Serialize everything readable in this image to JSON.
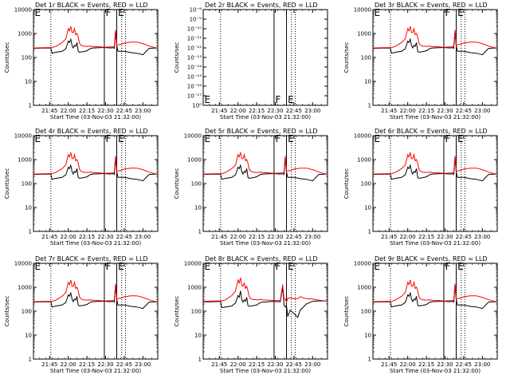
{
  "chart_data": [
    {
      "type": "line",
      "title": "Det 1r BLACK = Events, RED = LLD",
      "xlabel": "Start Time (03-Nov-03 21:32:00)",
      "ylabel": "Counts/sec",
      "yscale": "log",
      "ylim": [
        1,
        10000
      ],
      "yticks": [
        "10000",
        "1000",
        "100",
        "10",
        "1"
      ],
      "xlim": [
        "21:32",
        "23:12"
      ],
      "xticks": [
        "21:45",
        "22:00",
        "22:15",
        "22:30",
        "22:45",
        "23:00"
      ],
      "dotted_lines": [
        "21:46",
        "22:43",
        "22:46"
      ],
      "solid_lines": [
        "22:29",
        "22:39"
      ],
      "flags": [
        "E",
        "F",
        "E"
      ],
      "has_data": true,
      "variant": "A",
      "series": [
        {
          "name": "Events",
          "color": "#000000",
          "values": []
        },
        {
          "name": "LLD",
          "color": "#ff0000",
          "values": []
        }
      ]
    },
    {
      "type": "line",
      "title": "Det 2r BLACK = Events, RED = LLD",
      "xlabel": "Start Time (03-Nov-03 21:32:00)",
      "ylabel": "Counts/sec",
      "yscale": "log",
      "ylim": [
        1,
        1e-08
      ],
      "yticks": [
        "10⁻⁸",
        "10⁻⁹",
        "10⁻¹⁰",
        "10⁻¹¹",
        "10⁻¹²",
        "10⁻¹³",
        "10⁻¹⁴",
        "10⁻¹⁵",
        "10⁻¹⁶",
        "10⁻¹⁷",
        "10⁰"
      ],
      "xlim": [
        "21:32",
        "23:12"
      ],
      "xticks": [
        "21:45",
        "22:00",
        "22:15",
        "22:30",
        "22:45",
        "23:00"
      ],
      "dotted_lines": [
        "21:46",
        "22:43",
        "22:46"
      ],
      "solid_lines": [
        "22:29",
        "22:39"
      ],
      "flags": [
        "E",
        "F",
        "E"
      ],
      "has_data": false,
      "variant": "A",
      "series": []
    },
    {
      "type": "line",
      "title": "Det 3r BLACK = Events, RED = LLD",
      "xlabel": "Start Time (03-Nov-03 21:32:00)",
      "ylabel": "Counts/sec",
      "yscale": "log",
      "ylim": [
        1,
        10000
      ],
      "yticks": [
        "10000",
        "1000",
        "100",
        "10",
        "1"
      ],
      "xlim": [
        "21:32",
        "23:12"
      ],
      "xticks": [
        "21:45",
        "22:00",
        "22:15",
        "22:30",
        "22:45",
        "23:00"
      ],
      "dotted_lines": [
        "21:46",
        "22:43",
        "22:46"
      ],
      "solid_lines": [
        "22:29",
        "22:39"
      ],
      "flags": [
        "E",
        "F",
        "E"
      ],
      "has_data": true,
      "variant": "A",
      "series": [
        {
          "name": "Events",
          "color": "#000000",
          "values": []
        },
        {
          "name": "LLD",
          "color": "#ff0000",
          "values": []
        }
      ]
    },
    {
      "type": "line",
      "title": "Det 4r BLACK = Events, RED = LLD",
      "xlabel": "Start Time (03-Nov-03 21:32:00)",
      "ylabel": "Counts/sec",
      "yscale": "log",
      "ylim": [
        1,
        10000
      ],
      "yticks": [
        "10000",
        "1000",
        "100",
        "10",
        "1"
      ],
      "xlim": [
        "21:32",
        "23:12"
      ],
      "xticks": [
        "21:45",
        "22:00",
        "22:15",
        "22:30",
        "22:45",
        "23:00"
      ],
      "dotted_lines": [
        "21:46",
        "22:43",
        "22:46"
      ],
      "solid_lines": [
        "22:29",
        "22:39"
      ],
      "flags": [
        "E",
        "F",
        "E"
      ],
      "has_data": true,
      "variant": "A",
      "series": [
        {
          "name": "Events",
          "color": "#000000",
          "values": []
        },
        {
          "name": "LLD",
          "color": "#ff0000",
          "values": []
        }
      ]
    },
    {
      "type": "line",
      "title": "Det 5r BLACK = Events, RED = LLD",
      "xlabel": "Start Time (03-Nov-03 21:32:00)",
      "ylabel": "Counts/sec",
      "yscale": "log",
      "ylim": [
        1,
        10000
      ],
      "yticks": [
        "10000",
        "1000",
        "100",
        "10",
        "1"
      ],
      "xlim": [
        "21:32",
        "23:12"
      ],
      "xticks": [
        "21:45",
        "22:00",
        "22:15",
        "22:30",
        "22:45",
        "23:00"
      ],
      "dotted_lines": [
        "21:46",
        "22:43",
        "22:46"
      ],
      "solid_lines": [
        "22:29",
        "22:39"
      ],
      "flags": [
        "E",
        "F",
        "E"
      ],
      "has_data": true,
      "variant": "A",
      "series": [
        {
          "name": "Events",
          "color": "#000000",
          "values": []
        },
        {
          "name": "LLD",
          "color": "#ff0000",
          "values": []
        }
      ]
    },
    {
      "type": "line",
      "title": "Det 6r BLACK = Events, RED = LLD",
      "xlabel": "Start Time (03-Nov-03 21:32:00)",
      "ylabel": "Counts/sec",
      "yscale": "log",
      "ylim": [
        1,
        10000
      ],
      "yticks": [
        "10000",
        "1000",
        "100",
        "10",
        "1"
      ],
      "xlim": [
        "21:32",
        "23:12"
      ],
      "xticks": [
        "21:45",
        "22:00",
        "22:15",
        "22:30",
        "22:45",
        "23:00"
      ],
      "dotted_lines": [
        "21:46",
        "22:43",
        "22:46"
      ],
      "solid_lines": [
        "22:29",
        "22:39"
      ],
      "flags": [
        "E",
        "F",
        "E"
      ],
      "has_data": true,
      "variant": "A",
      "series": [
        {
          "name": "Events",
          "color": "#000000",
          "values": []
        },
        {
          "name": "LLD",
          "color": "#ff0000",
          "values": []
        }
      ]
    },
    {
      "type": "line",
      "title": "Det 7r BLACK = Events, RED = LLD",
      "xlabel": "Start Time (03-Nov-03 21:32:00)",
      "ylabel": "Counts/sec",
      "yscale": "log",
      "ylim": [
        1,
        10000
      ],
      "yticks": [
        "10000",
        "1000",
        "100",
        "10",
        "1"
      ],
      "xlim": [
        "21:32",
        "23:12"
      ],
      "xticks": [
        "21:45",
        "22:00",
        "22:15",
        "22:30",
        "22:45",
        "23:00"
      ],
      "dotted_lines": [
        "21:46",
        "22:43",
        "22:46"
      ],
      "solid_lines": [
        "22:29",
        "22:39"
      ],
      "flags": [
        "E",
        "F",
        "E"
      ],
      "has_data": true,
      "variant": "A",
      "series": [
        {
          "name": "Events",
          "color": "#000000",
          "values": []
        },
        {
          "name": "LLD",
          "color": "#ff0000",
          "values": []
        }
      ]
    },
    {
      "type": "line",
      "title": "Det 8r BLACK = Events, RED = LLD",
      "xlabel": "Start Time (03-Nov-03 21:32:00)",
      "ylabel": "Counts/sec",
      "yscale": "log",
      "ylim": [
        1,
        10000
      ],
      "yticks": [
        "10000",
        "1000",
        "100",
        "10",
        "1"
      ],
      "xlim": [
        "21:32",
        "23:12"
      ],
      "xticks": [
        "21:45",
        "22:00",
        "22:15",
        "22:30",
        "22:45",
        "23:00"
      ],
      "dotted_lines": [
        "21:46",
        "22:43",
        "22:46"
      ],
      "solid_lines": [
        "22:29",
        "22:39"
      ],
      "flags": [
        "E",
        "F",
        "E"
      ],
      "has_data": true,
      "variant": "B",
      "series": [
        {
          "name": "Events",
          "color": "#000000",
          "values": []
        },
        {
          "name": "LLD",
          "color": "#ff0000",
          "values": []
        }
      ]
    },
    {
      "type": "line",
      "title": "Det 9r BLACK = Events, RED = LLD",
      "xlabel": "Start Time (03-Nov-03 21:32:00)",
      "ylabel": "Counts/sec",
      "yscale": "log",
      "ylim": [
        1,
        10000
      ],
      "yticks": [
        "10000",
        "1000",
        "100",
        "10",
        "1"
      ],
      "xlim": [
        "21:32",
        "23:12"
      ],
      "xticks": [
        "21:45",
        "22:00",
        "22:15",
        "22:30",
        "22:45",
        "23:00"
      ],
      "dotted_lines": [
        "21:46",
        "22:43",
        "22:46"
      ],
      "solid_lines": [
        "22:29",
        "22:39"
      ],
      "flags": [
        "E",
        "F",
        "E"
      ],
      "has_data": true,
      "variant": "A",
      "series": [
        {
          "name": "Events",
          "color": "#000000",
          "values": []
        },
        {
          "name": "LLD",
          "color": "#ff0000",
          "values": []
        }
      ]
    }
  ],
  "profiles": {
    "times": [
      "21:32",
      "21:40",
      "21:46",
      "21:47",
      "21:50",
      "21:55",
      "21:58",
      "22:00",
      "22:01",
      "22:02",
      "22:03",
      "22:04",
      "22:05",
      "22:06",
      "22:07",
      "22:08",
      "22:09",
      "22:10",
      "22:12",
      "22:15",
      "22:18",
      "22:20",
      "22:25",
      "22:28",
      "22:29",
      "22:31",
      "22:34",
      "22:36",
      "22:37",
      "22:38",
      "22:39",
      "22:40",
      "22:42",
      "22:45",
      "22:48",
      "22:50",
      "22:55",
      "23:00",
      "23:05",
      "23:10",
      "23:12"
    ],
    "A": {
      "Events": [
        240,
        245,
        250,
        150,
        165,
        180,
        230,
        480,
        420,
        580,
        320,
        250,
        320,
        290,
        420,
        180,
        165,
        170,
        175,
        190,
        240,
        250,
        255,
        260,
        260,
        255,
        250,
        260,
        240,
        1200,
        300,
        180,
        180,
        180,
        170,
        160,
        150,
        130,
        240,
        250,
        245
      ],
      "LLD": [
        250,
        255,
        260,
        260,
        290,
        420,
        600,
        1600,
        1300,
        2000,
        1100,
        1100,
        1600,
        900,
        1000,
        700,
        400,
        330,
        300,
        290,
        300,
        285,
        280,
        270,
        270,
        270,
        275,
        280,
        290,
        1400,
        330,
        340,
        350,
        400,
        420,
        440,
        440,
        380,
        300,
        255,
        250
      ]
    },
    "B": {
      "Events": [
        245,
        250,
        255,
        140,
        150,
        165,
        220,
        450,
        380,
        700,
        300,
        240,
        300,
        260,
        380,
        170,
        160,
        165,
        170,
        180,
        230,
        240,
        250,
        255,
        260,
        250,
        250,
        1000,
        180,
        150,
        170,
        60,
        110,
        80,
        55,
        110,
        200,
        260,
        270,
        270,
        265
      ],
      "LLD": [
        260,
        265,
        270,
        270,
        300,
        450,
        700,
        2000,
        1500,
        2500,
        1200,
        1100,
        1500,
        900,
        1100,
        700,
        420,
        340,
        310,
        300,
        310,
        295,
        290,
        280,
        280,
        280,
        285,
        1300,
        320,
        320,
        240,
        350,
        360,
        330,
        330,
        400,
        330,
        320,
        290,
        270,
        265
      ]
    }
  }
}
